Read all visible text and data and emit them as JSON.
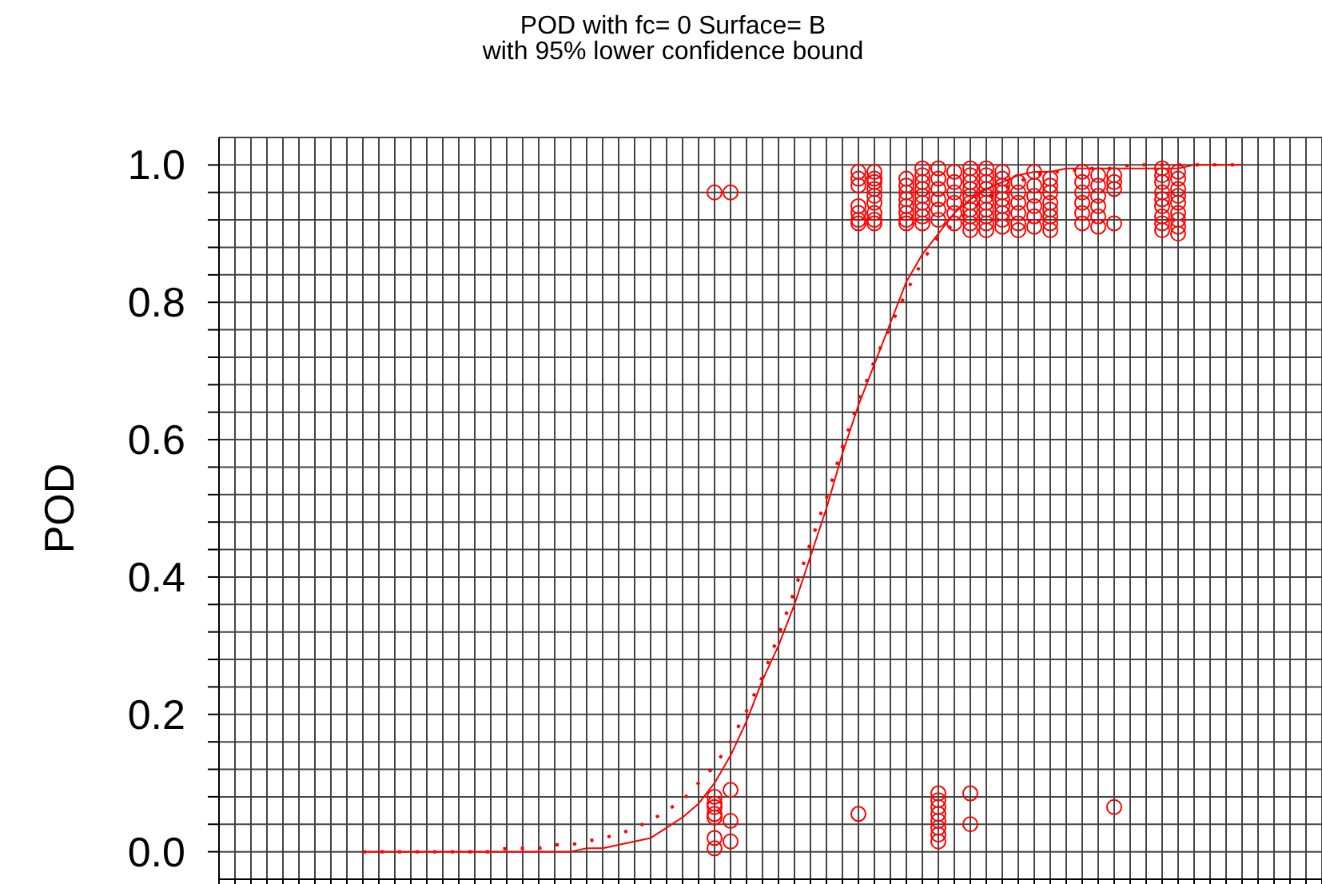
{
  "chart_data": {
    "type": "scatter",
    "title": "POD with fc= 0 Surface= B",
    "subtitle": "with 95% lower confidence bound",
    "ylabel": "POD",
    "categories": [
      null,
      null,
      null,
      null,
      null,
      null,
      null,
      null,
      null,
      null,
      null,
      null,
      null,
      null,
      null,
      null,
      null,
      null,
      null,
      null,
      null,
      null,
      null,
      null,
      null,
      null,
      null,
      null,
      null,
      null,
      null,
      null,
      null,
      null,
      null,
      null,
      null,
      null,
      null,
      null,
      null,
      null,
      null,
      null,
      null,
      null,
      null,
      null,
      null,
      null,
      null,
      null,
      null,
      null,
      null,
      null,
      null,
      null,
      null,
      null,
      null,
      null,
      null,
      null,
      null,
      null,
      null,
      null,
      null,
      null
    ],
    "ylim": [
      -0.04,
      1.04
    ],
    "yticks": [
      {
        "value": 0,
        "label": "0.0"
      },
      {
        "value": 0.04,
        "label": null
      },
      {
        "value": 0.08,
        "label": null
      },
      {
        "value": 0.12,
        "label": null
      },
      {
        "value": 0.16,
        "label": null
      },
      0.2,
      {
        "value": 0.24,
        "label": null
      },
      {
        "value": 0.28,
        "label": null
      },
      {
        "value": 0.32,
        "label": null
      },
      {
        "value": 0.36,
        "label": null
      },
      0.4,
      {
        "value": 0.44,
        "label": null
      },
      {
        "value": 0.48,
        "label": null
      },
      {
        "value": 0.52,
        "label": null
      },
      {
        "value": 0.56,
        "label": null
      },
      0.6,
      {
        "value": 0.64,
        "label": null
      },
      {
        "value": 0.68,
        "label": null
      },
      {
        "value": 0.72,
        "label": null
      },
      {
        "value": 0.76,
        "label": null
      },
      0.8,
      {
        "value": 0.84,
        "label": null
      },
      {
        "value": 0.88,
        "label": null
      },
      {
        "value": 0.92,
        "label": null
      },
      {
        "value": 0.96,
        "label": null
      },
      {
        "value": 1,
        "label": "1.0"
      }
    ],
    "grid": true,
    "marker": "circle",
    "tick_labels": "y",
    "series": [
      {
        "type": "line",
        "line_style": "solid",
        "marker": "none",
        "color": "#ff0000",
        "values": [
          null,
          null,
          null,
          null,
          null,
          null,
          null,
          null,
          null,
          0,
          0,
          0,
          0,
          0,
          0,
          0,
          0,
          0,
          0,
          0,
          0,
          0,
          0,
          0.005,
          0.005,
          0.01,
          0.015,
          0.02,
          0.035,
          0.05,
          0.07,
          0.1,
          0.14,
          0.19,
          0.25,
          0.3,
          0.36,
          0.43,
          0.5,
          0.58,
          0.65,
          0.71,
          0.77,
          0.83,
          0.87,
          0.9,
          0.93,
          0.95,
          0.965,
          0.975,
          0.985,
          0.99,
          0.99,
          0.995,
          0.995,
          0.995,
          0.995,
          0.995,
          0.995,
          0.995,
          0.995,
          1,
          1,
          1,
          1,
          null,
          null,
          null,
          null,
          null
        ]
      },
      {
        "type": "line",
        "line_style": "dotted",
        "marker": "none",
        "color": "#ff0000",
        "values": [
          null,
          null,
          null,
          null,
          null,
          null,
          null,
          null,
          null,
          0,
          0,
          0,
          0,
          0,
          0,
          0,
          0,
          0,
          0.005,
          0.005,
          0.005,
          0.01,
          0.01,
          0.015,
          0.02,
          0.025,
          0.035,
          0.045,
          0.06,
          0.075,
          0.1,
          0.125,
          0.16,
          0.205,
          0.255,
          0.315,
          0.38,
          0.45,
          0.515,
          0.59,
          0.655,
          0.715,
          0.765,
          0.815,
          0.86,
          0.895,
          0.915,
          0.935,
          0.95,
          0.965,
          0.975,
          0.985,
          0.99,
          0.99,
          0.995,
          0.995,
          0.995,
          1,
          1,
          1,
          1,
          1,
          1,
          1,
          1,
          null,
          null,
          null,
          null,
          null
        ]
      },
      {
        "color": "#ff0000",
        "values": [
          null,
          null,
          null,
          null,
          null,
          null,
          null,
          null,
          null,
          null,
          null,
          null,
          null,
          null,
          null,
          null,
          null,
          null,
          null,
          null,
          null,
          null,
          null,
          null,
          null,
          null,
          null,
          null,
          null,
          null,
          null,
          0.96,
          0.96,
          null,
          null,
          null,
          null,
          null,
          null,
          null,
          0.99,
          0.99,
          null,
          0.98,
          0.995,
          0.995,
          0.99,
          0.995,
          0.995,
          0.99,
          0.975,
          0.99,
          0.98,
          null,
          0.99,
          0.985,
          0.985,
          null,
          null,
          0.995,
          0.99,
          null,
          null,
          null,
          null,
          null,
          null,
          null,
          null,
          null
        ]
      },
      {
        "color": "#ff0000",
        "values": [
          null,
          null,
          null,
          null,
          null,
          null,
          null,
          null,
          null,
          null,
          null,
          null,
          null,
          null,
          null,
          null,
          null,
          null,
          null,
          null,
          null,
          null,
          null,
          null,
          null,
          null,
          null,
          null,
          null,
          null,
          null,
          0.08,
          0.09,
          null,
          null,
          null,
          null,
          null,
          null,
          null,
          0.98,
          0.98,
          null,
          0.97,
          0.985,
          0.98,
          0.975,
          0.985,
          0.985,
          0.98,
          0.96,
          0.97,
          0.97,
          null,
          0.975,
          0.97,
          0.975,
          null,
          null,
          0.985,
          0.98,
          null,
          null,
          null,
          null,
          null,
          null,
          null,
          null,
          null
        ]
      },
      {
        "color": "#ff0000",
        "values": [
          null,
          null,
          null,
          null,
          null,
          null,
          null,
          null,
          null,
          null,
          null,
          null,
          null,
          null,
          null,
          null,
          null,
          null,
          null,
          null,
          null,
          null,
          null,
          null,
          null,
          null,
          null,
          null,
          null,
          null,
          null,
          0.07,
          0.045,
          null,
          null,
          null,
          null,
          null,
          null,
          null,
          0.97,
          0.975,
          null,
          0.96,
          0.975,
          0.965,
          0.96,
          0.975,
          0.975,
          0.97,
          0.945,
          0.955,
          0.96,
          null,
          0.96,
          0.955,
          0.965,
          null,
          null,
          0.975,
          0.965,
          null,
          null,
          null,
          null,
          null,
          null,
          null,
          null,
          null
        ]
      },
      {
        "color": "#ff0000",
        "values": [
          null,
          null,
          null,
          null,
          null,
          null,
          null,
          null,
          null,
          null,
          null,
          null,
          null,
          null,
          null,
          null,
          null,
          null,
          null,
          null,
          null,
          null,
          null,
          null,
          null,
          null,
          null,
          null,
          null,
          null,
          null,
          0.065,
          0.015,
          null,
          null,
          null,
          null,
          null,
          null,
          null,
          0.94,
          0.965,
          null,
          0.95,
          0.965,
          0.95,
          0.945,
          0.965,
          0.965,
          0.96,
          0.93,
          0.94,
          0.945,
          null,
          0.945,
          0.94,
          0.915,
          null,
          null,
          0.96,
          0.955,
          null,
          null,
          null,
          null,
          null,
          null,
          null,
          null,
          null
        ]
      },
      {
        "color": "#ff0000",
        "values": [
          null,
          null,
          null,
          null,
          null,
          null,
          null,
          null,
          null,
          null,
          null,
          null,
          null,
          null,
          null,
          null,
          null,
          null,
          null,
          null,
          null,
          null,
          null,
          null,
          null,
          null,
          null,
          null,
          null,
          null,
          null,
          0.055,
          null,
          null,
          null,
          null,
          null,
          null,
          null,
          null,
          0.93,
          0.955,
          null,
          0.94,
          0.955,
          0.935,
          0.93,
          0.955,
          0.955,
          0.95,
          0.915,
          0.925,
          0.935,
          null,
          0.93,
          0.925,
          0.065,
          null,
          null,
          0.95,
          0.945,
          null,
          null,
          null,
          null,
          null,
          null,
          null,
          null,
          null
        ]
      },
      {
        "color": "#ff0000",
        "values": [
          null,
          null,
          null,
          null,
          null,
          null,
          null,
          null,
          null,
          null,
          null,
          null,
          null,
          null,
          null,
          null,
          null,
          null,
          null,
          null,
          null,
          null,
          null,
          null,
          null,
          null,
          null,
          null,
          null,
          null,
          null,
          0.05,
          null,
          null,
          null,
          null,
          null,
          null,
          null,
          null,
          0.92,
          0.945,
          null,
          0.93,
          0.945,
          0.92,
          0.915,
          0.945,
          0.945,
          0.94,
          0.905,
          0.91,
          0.925,
          null,
          0.915,
          0.91,
          null,
          null,
          null,
          0.94,
          0.93,
          null,
          null,
          null,
          null,
          null,
          null,
          null,
          null,
          null
        ]
      },
      {
        "color": "#ff0000",
        "values": [
          null,
          null,
          null,
          null,
          null,
          null,
          null,
          null,
          null,
          null,
          null,
          null,
          null,
          null,
          null,
          null,
          null,
          null,
          null,
          null,
          null,
          null,
          null,
          null,
          null,
          null,
          null,
          null,
          null,
          null,
          null,
          0.02,
          null,
          null,
          null,
          null,
          null,
          null,
          null,
          null,
          0.915,
          0.93,
          null,
          0.92,
          0.935,
          0.085,
          null,
          0.935,
          0.935,
          0.93,
          null,
          null,
          0.915,
          null,
          null,
          null,
          null,
          null,
          null,
          0.925,
          0.92,
          null,
          null,
          null,
          null,
          null,
          null,
          null,
          null,
          null
        ]
      },
      {
        "color": "#ff0000",
        "values": [
          null,
          null,
          null,
          null,
          null,
          null,
          null,
          null,
          null,
          null,
          null,
          null,
          null,
          null,
          null,
          null,
          null,
          null,
          null,
          null,
          null,
          null,
          null,
          null,
          null,
          null,
          null,
          null,
          null,
          null,
          null,
          0.005,
          null,
          null,
          null,
          null,
          null,
          null,
          null,
          null,
          0.055,
          0.92,
          null,
          0.915,
          0.925,
          0.075,
          null,
          0.925,
          0.925,
          0.92,
          null,
          null,
          0.905,
          null,
          null,
          null,
          null,
          null,
          null,
          0.915,
          0.91,
          null,
          null,
          null,
          null,
          null,
          null,
          null,
          null,
          null
        ]
      },
      {
        "color": "#ff0000",
        "values": [
          null,
          null,
          null,
          null,
          null,
          null,
          null,
          null,
          null,
          null,
          null,
          null,
          null,
          null,
          null,
          null,
          null,
          null,
          null,
          null,
          null,
          null,
          null,
          null,
          null,
          null,
          null,
          null,
          null,
          null,
          null,
          null,
          null,
          null,
          null,
          null,
          null,
          null,
          null,
          null,
          null,
          0.915,
          null,
          null,
          0.915,
          0.065,
          null,
          0.915,
          0.915,
          0.91,
          null,
          null,
          null,
          null,
          null,
          null,
          null,
          null,
          null,
          0.905,
          0.9,
          null,
          null,
          null,
          null,
          null,
          null,
          null,
          null,
          null
        ]
      },
      {
        "color": "#ff0000",
        "values": [
          null,
          null,
          null,
          null,
          null,
          null,
          null,
          null,
          null,
          null,
          null,
          null,
          null,
          null,
          null,
          null,
          null,
          null,
          null,
          null,
          null,
          null,
          null,
          null,
          null,
          null,
          null,
          null,
          null,
          null,
          null,
          null,
          null,
          null,
          null,
          null,
          null,
          null,
          null,
          null,
          null,
          null,
          null,
          null,
          null,
          0.055,
          null,
          0.905,
          0.905,
          null,
          null,
          null,
          null,
          null,
          null,
          null,
          null,
          null,
          null,
          null,
          null,
          null,
          null,
          null,
          null,
          null,
          null,
          null,
          null,
          null
        ]
      },
      {
        "color": "#ff0000",
        "values": [
          null,
          null,
          null,
          null,
          null,
          null,
          null,
          null,
          null,
          null,
          null,
          null,
          null,
          null,
          null,
          null,
          null,
          null,
          null,
          null,
          null,
          null,
          null,
          null,
          null,
          null,
          null,
          null,
          null,
          null,
          null,
          null,
          null,
          null,
          null,
          null,
          null,
          null,
          null,
          null,
          null,
          null,
          null,
          null,
          null,
          0.045,
          null,
          0.085,
          null,
          null,
          null,
          null,
          null,
          null,
          null,
          null,
          null,
          null,
          null,
          null,
          null,
          null,
          null,
          null,
          null,
          null,
          null,
          null,
          null,
          null
        ]
      },
      {
        "color": "#ff0000",
        "values": [
          null,
          null,
          null,
          null,
          null,
          null,
          null,
          null,
          null,
          null,
          null,
          null,
          null,
          null,
          null,
          null,
          null,
          null,
          null,
          null,
          null,
          null,
          null,
          null,
          null,
          null,
          null,
          null,
          null,
          null,
          null,
          null,
          null,
          null,
          null,
          null,
          null,
          null,
          null,
          null,
          null,
          null,
          null,
          null,
          null,
          0.035,
          null,
          0.04,
          null,
          null,
          null,
          null,
          null,
          null,
          null,
          null,
          null,
          null,
          null,
          null,
          null,
          null,
          null,
          null,
          null,
          null,
          null,
          null,
          null,
          null
        ]
      },
      {
        "color": "#ff0000",
        "values": [
          null,
          null,
          null,
          null,
          null,
          null,
          null,
          null,
          null,
          null,
          null,
          null,
          null,
          null,
          null,
          null,
          null,
          null,
          null,
          null,
          null,
          null,
          null,
          null,
          null,
          null,
          null,
          null,
          null,
          null,
          null,
          null,
          null,
          null,
          null,
          null,
          null,
          null,
          null,
          null,
          null,
          null,
          null,
          null,
          null,
          0.025,
          null,
          null,
          null,
          null,
          null,
          null,
          null,
          null,
          null,
          null,
          null,
          null,
          null,
          null,
          null,
          null,
          null,
          null,
          null,
          null,
          null,
          null,
          null,
          null
        ]
      },
      {
        "color": "#ff0000",
        "values": [
          null,
          null,
          null,
          null,
          null,
          null,
          null,
          null,
          null,
          null,
          null,
          null,
          null,
          null,
          null,
          null,
          null,
          null,
          null,
          null,
          null,
          null,
          null,
          null,
          null,
          null,
          null,
          null,
          null,
          null,
          null,
          null,
          null,
          null,
          null,
          null,
          null,
          null,
          null,
          null,
          null,
          null,
          null,
          null,
          null,
          0.015,
          null,
          null,
          null,
          null,
          null,
          null,
          null,
          null,
          null,
          null,
          null,
          null,
          null,
          null,
          null,
          null,
          null,
          null,
          null,
          null,
          null,
          null,
          null,
          null
        ]
      }
    ]
  }
}
